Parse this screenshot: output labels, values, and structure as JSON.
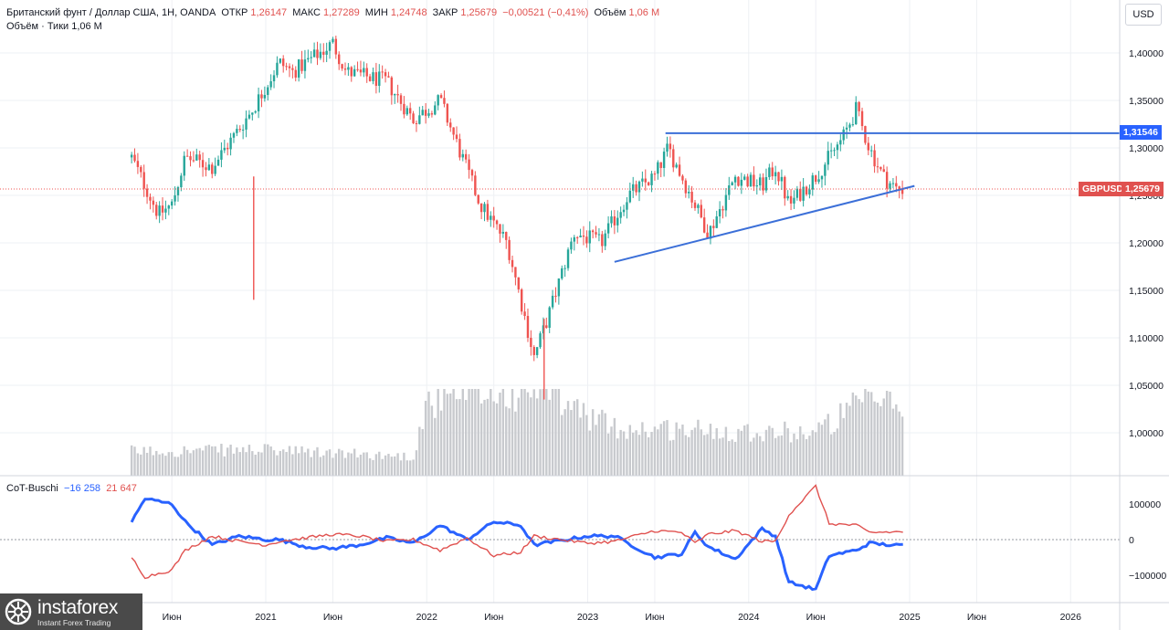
{
  "header": {
    "symbol_title": "Британский фунт / Доллар США, 1Н, OANDA",
    "open_label": "ОТКР",
    "open_value": "1,26147",
    "high_label": "МАКС",
    "high_value": "1,27289",
    "low_label": "МИН",
    "low_value": "1,24748",
    "close_label": "ЗАКР",
    "close_value": "1,25679",
    "change_value": "−0,00521 (−0,41%)",
    "volume_label": "Объём",
    "volume_value": "1,06 M",
    "line2": "Объём · Тики  1,06 M"
  },
  "currency_button": "USD",
  "price_axis": {
    "ticks": [
      "1,40000",
      "1,35000",
      "1,30000",
      "1,25000",
      "1,20000",
      "1,15000",
      "1,10000",
      "1,05000",
      "1,00000"
    ],
    "tick_values": [
      1.4,
      1.35,
      1.3,
      1.25,
      1.2,
      1.15,
      1.1,
      1.05,
      1.0
    ],
    "resistance_label": "1,31546",
    "symbol_tag": "GBPUSD",
    "last_price_label": "1,25679"
  },
  "time_axis": {
    "labels": [
      "Июн",
      "2021",
      "Июн",
      "2022",
      "Июн",
      "2023",
      "Июн",
      "2024",
      "Июн",
      "2025",
      "Июн",
      "2026"
    ]
  },
  "cot": {
    "title": "CoT-Buschi",
    "value_blue": "−16 258",
    "value_red": "21 647",
    "ticks": [
      "100000",
      "0",
      "−100000"
    ],
    "tick_values": [
      100000,
      0,
      -100000
    ]
  },
  "colors": {
    "up": "#26a69a",
    "down": "#ef5350",
    "blue": "#2962ff",
    "red": "#e0514f",
    "grid": "#eef0f4",
    "volume": "#c8cace",
    "trendline": "#3b6fd8"
  },
  "chart_data": [
    {
      "type": "candlestick",
      "title": "Британский фунт / Доллар США, 1Н, OANDA",
      "x_range": [
        "2020-03",
        "2026-06"
      ],
      "ylim": [
        0.955,
        1.445
      ],
      "y_ticks": [
        1.4,
        1.35,
        1.3,
        1.25,
        1.2,
        1.15,
        1.1,
        1.05,
        1.0
      ],
      "close_path": [
        [
          "2020-03",
          1.29
        ],
        [
          "2020-05",
          1.23
        ],
        [
          "2020-06",
          1.24
        ],
        [
          "2020-07",
          1.29
        ],
        [
          "2020-09",
          1.28
        ],
        [
          "2020-10",
          1.3
        ],
        [
          "2020-12",
          1.34
        ],
        [
          "2021-02",
          1.39
        ],
        [
          "2021-03",
          1.38
        ],
        [
          "2021-06",
          1.41
        ],
        [
          "2021-07",
          1.38
        ],
        [
          "2021-10",
          1.37
        ],
        [
          "2021-12",
          1.33
        ],
        [
          "2022-02",
          1.35
        ],
        [
          "2022-05",
          1.24
        ],
        [
          "2022-07",
          1.2
        ],
        [
          "2022-09",
          1.08
        ],
        [
          "2022-10",
          1.12
        ],
        [
          "2022-12",
          1.21
        ],
        [
          "2023-02",
          1.2
        ],
        [
          "2023-04",
          1.25
        ],
        [
          "2023-06",
          1.27
        ],
        [
          "2023-07",
          1.3
        ],
        [
          "2023-08",
          1.27
        ],
        [
          "2023-10",
          1.21
        ],
        [
          "2023-12",
          1.27
        ],
        [
          "2024-02",
          1.26
        ],
        [
          "2024-03",
          1.28
        ],
        [
          "2024-04",
          1.24
        ],
        [
          "2024-06",
          1.27
        ],
        [
          "2024-07",
          1.29
        ],
        [
          "2024-08",
          1.31
        ],
        [
          "2024-09",
          1.34
        ],
        [
          "2024-10",
          1.3
        ],
        [
          "2024-11",
          1.27
        ],
        [
          "2024-12",
          1.2568
        ]
      ],
      "resistance_level": 1.31546,
      "support_trendline": [
        [
          "2023-03",
          1.18
        ],
        [
          "2024-12",
          1.26
        ]
      ],
      "last_close": 1.25679
    },
    {
      "type": "bar",
      "title": "Объём · Тики",
      "volume_pattern": [
        [
          "2020-03",
          0.28
        ],
        [
          "2020-12",
          0.3
        ],
        [
          "2021-06",
          0.26
        ],
        [
          "2021-12",
          0.22
        ],
        [
          "2022-01",
          0.85
        ],
        [
          "2022-09",
          1.0
        ],
        [
          "2023-03",
          0.55
        ],
        [
          "2024-06",
          0.5
        ],
        [
          "2024-10",
          0.9
        ],
        [
          "2024-12",
          0.8
        ]
      ]
    },
    {
      "type": "line",
      "title": "CoT-Buschi",
      "ylim": [
        -180000,
        180000
      ],
      "series": [
        {
          "name": "−16 258",
          "color": "#2962ff",
          "points": [
            [
              "2020-03",
              50000
            ],
            [
              "2020-04",
              115000
            ],
            [
              "2020-06",
              100000
            ],
            [
              "2020-07",
              50000
            ],
            [
              "2020-09",
              -15000
            ],
            [
              "2020-11",
              10000
            ],
            [
              "2021-01",
              0
            ],
            [
              "2021-02",
              0
            ],
            [
              "2021-04",
              -20000
            ],
            [
              "2021-06",
              -25000
            ],
            [
              "2021-08",
              -15000
            ],
            [
              "2021-10",
              5000
            ],
            [
              "2021-12",
              -10000
            ],
            [
              "2022-02",
              40000
            ],
            [
              "2022-04",
              0
            ],
            [
              "2022-06",
              50000
            ],
            [
              "2022-08",
              40000
            ],
            [
              "2022-09",
              -15000
            ],
            [
              "2023-01",
              10000
            ],
            [
              "2023-03",
              10000
            ],
            [
              "2023-06",
              -50000
            ],
            [
              "2023-08",
              -40000
            ],
            [
              "2023-09",
              20000
            ],
            [
              "2023-10",
              -20000
            ],
            [
              "2023-12",
              -55000
            ],
            [
              "2024-02",
              30000
            ],
            [
              "2024-03",
              10000
            ],
            [
              "2024-04",
              -120000
            ],
            [
              "2024-06",
              -140000
            ],
            [
              "2024-07",
              -45000
            ],
            [
              "2024-09",
              -30000
            ],
            [
              "2024-10",
              -10000
            ],
            [
              "2024-12",
              -16258
            ]
          ]
        },
        {
          "name": "21 647",
          "color": "#e0514f",
          "points": [
            [
              "2020-03",
              -50000
            ],
            [
              "2020-04",
              -105000
            ],
            [
              "2020-06",
              -85000
            ],
            [
              "2020-07",
              -30000
            ],
            [
              "2020-09",
              10000
            ],
            [
              "2020-11",
              -5000
            ],
            [
              "2021-01",
              -15000
            ],
            [
              "2021-02",
              -5000
            ],
            [
              "2021-04",
              5000
            ],
            [
              "2021-06",
              15000
            ],
            [
              "2021-08",
              10000
            ],
            [
              "2021-10",
              -5000
            ],
            [
              "2021-12",
              0
            ],
            [
              "2022-02",
              -30000
            ],
            [
              "2022-04",
              5000
            ],
            [
              "2022-06",
              -45000
            ],
            [
              "2022-08",
              -35000
            ],
            [
              "2022-09",
              10000
            ],
            [
              "2023-01",
              -10000
            ],
            [
              "2023-03",
              -5000
            ],
            [
              "2023-06",
              25000
            ],
            [
              "2023-08",
              20000
            ],
            [
              "2023-09",
              -10000
            ],
            [
              "2023-10",
              15000
            ],
            [
              "2023-12",
              25000
            ],
            [
              "2024-02",
              -5000
            ],
            [
              "2024-03",
              -5000
            ],
            [
              "2024-04",
              70000
            ],
            [
              "2024-06",
              150000
            ],
            [
              "2024-07",
              45000
            ],
            [
              "2024-09",
              40000
            ],
            [
              "2024-10",
              20000
            ],
            [
              "2024-12",
              21647
            ]
          ]
        }
      ],
      "y_ticks": [
        100000,
        0,
        -100000
      ]
    }
  ]
}
